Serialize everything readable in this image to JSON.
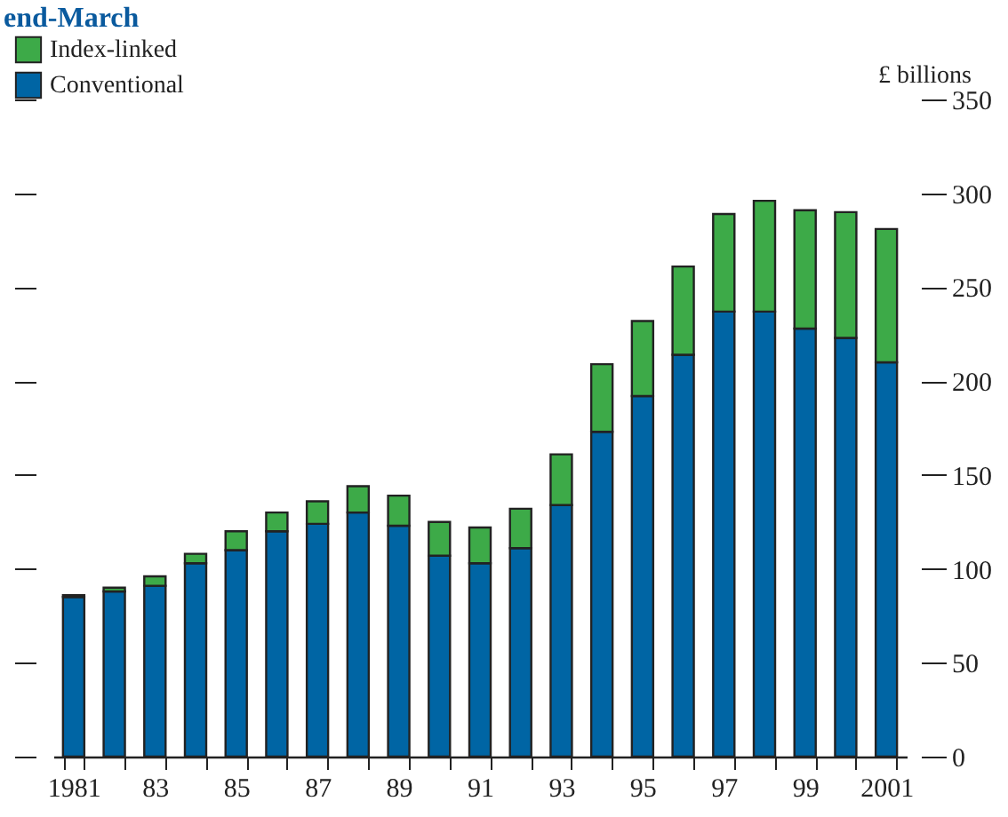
{
  "chart_data": {
    "type": "bar",
    "title": "end-March",
    "ylabel": "£ billions",
    "stacked": true,
    "legend": "top left",
    "grid": false,
    "categories": [
      "1981",
      null,
      "83",
      null,
      "85",
      null,
      "87",
      null,
      "89",
      null,
      "91",
      null,
      "93",
      null,
      "95",
      null,
      "97",
      null,
      "99",
      null,
      "2001"
    ],
    "series": [
      {
        "name": "Conventional",
        "color": "#0065a4",
        "values": [
          85,
          88,
          91,
          103,
          110,
          120,
          124,
          130,
          123,
          107,
          103,
          111,
          134,
          173,
          192,
          214,
          237,
          237,
          228,
          223,
          210
        ]
      },
      {
        "name": "Index-linked",
        "color": "#3daa48",
        "values": [
          1,
          2,
          5,
          5,
          10,
          10,
          12,
          14,
          16,
          18,
          19,
          21,
          27,
          36,
          40,
          47,
          52,
          59,
          63,
          67,
          71
        ]
      }
    ],
    "ylim": [
      0,
      350
    ],
    "yticks": [
      0,
      50,
      100,
      150,
      200,
      250,
      300,
      350
    ]
  }
}
